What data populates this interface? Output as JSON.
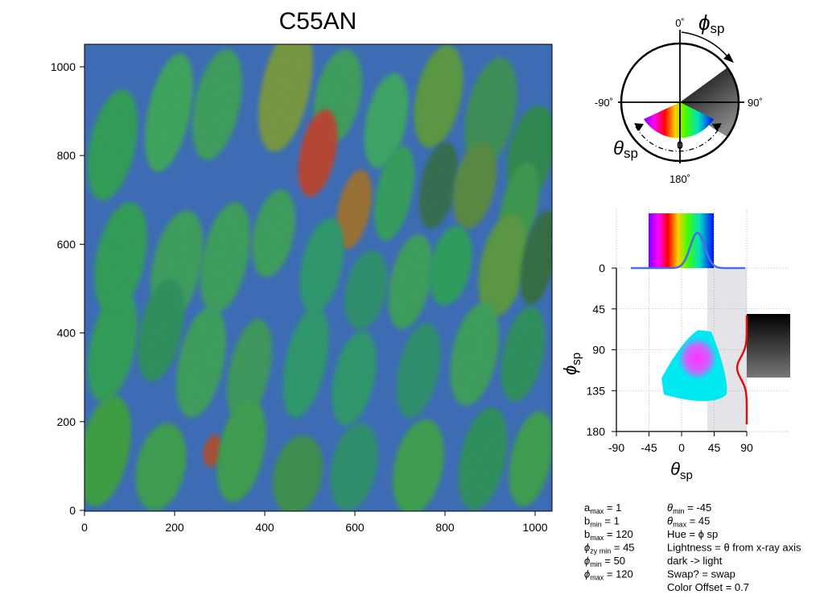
{
  "title": "C55AN",
  "chart_data": [
    {
      "type": "heatmap",
      "title": "C55AN",
      "xlim": [
        0,
        1040
      ],
      "ylim": [
        0,
        1050
      ],
      "xticks": [
        0,
        200,
        400,
        600,
        800,
        1000
      ],
      "yticks": [
        0,
        200,
        400,
        600,
        800,
        1000
      ],
      "colors": {
        "background": "#3a7fa0",
        "domain": "#2fa040",
        "accent_blue": "#3a40d8",
        "hot": "#e0302a"
      }
    },
    {
      "type": "scatter",
      "xlabel": "θ",
      "xlabel_sub": "sp",
      "ylabel": "ϕ",
      "ylabel_sub": "sp",
      "xlim": [
        -90,
        90
      ],
      "ylim": [
        180,
        0
      ],
      "xticks": [
        -90,
        -45,
        0,
        45,
        90
      ],
      "yticks": [
        0,
        45,
        90,
        135,
        180
      ],
      "grid": true,
      "marginal_theta_peak": 22,
      "marginal_phi_peak": 110,
      "shaded_theta_range": [
        35,
        90
      ],
      "colors": {
        "density_low": "#00e8f0",
        "density_high": "#ff30ff",
        "marginal_top": "#4a6ee0",
        "marginal_right": "#e01010"
      }
    }
  ],
  "polar_legend": {
    "labels": {
      "top": "0˚",
      "right": "90˚",
      "left": "-90˚",
      "bottom": "180˚",
      "center": "0"
    },
    "phi_label": "ϕ",
    "phi_sub": "sp",
    "theta_label": "θ",
    "theta_sub": "sp"
  },
  "params_left": [
    {
      "sym": "a",
      "sub": "max",
      "val": " = 1"
    },
    {
      "sym": "b",
      "sub": "min",
      "val": " = 1"
    },
    {
      "sym": "b",
      "sub": "max",
      "val": " = 120"
    },
    {
      "sym": "ϕ",
      "sub": "zy min",
      "val": " = 45"
    },
    {
      "sym": "ϕ",
      "sub": "min",
      "val": " = 50"
    },
    {
      "sym": "ϕ",
      "sub": "max",
      "val": " = 120"
    }
  ],
  "params_right": [
    {
      "sym": "θ",
      "sub": "min",
      "val": " = -45"
    },
    {
      "sym": "θ",
      "sub": "max",
      "val": " = 45"
    },
    {
      "sym": "",
      "sub": "",
      "val": "Hue = ϕ sp"
    },
    {
      "sym": "",
      "sub": "",
      "val": "Lightness = θ from x-ray axis"
    },
    {
      "sym": "",
      "sub": "",
      "val": "dark -> light"
    },
    {
      "sym": "",
      "sub": "",
      "val": "Swap? = swap"
    },
    {
      "sym": "",
      "sub": "",
      "val": "Color Offset = 0.7"
    }
  ]
}
